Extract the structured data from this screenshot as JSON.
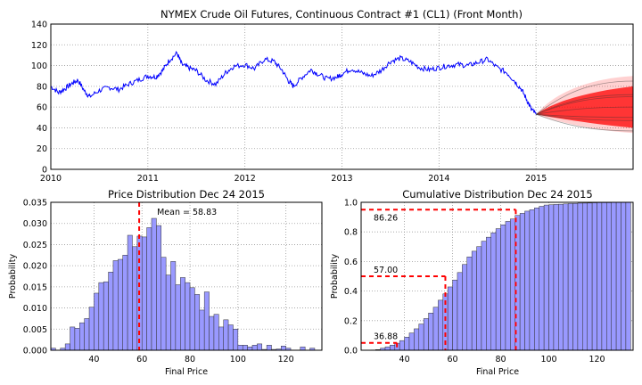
{
  "chart_data": [
    {
      "type": "line",
      "title": "NYMEX Crude Oil Futures, Continuous Contract #1 (CL1) (Front Month)",
      "xlabel": "",
      "ylabel": "",
      "xlim": [
        2010.0,
        2016.0
      ],
      "ylim": [
        0,
        140
      ],
      "x_ticks": [
        "2010",
        "2011",
        "2012",
        "2013",
        "2014",
        "2015"
      ],
      "y_ticks": [
        "0",
        "20",
        "40",
        "60",
        "80",
        "100",
        "120",
        "140"
      ],
      "grid": true,
      "series": [
        {
          "color": "#0000ff",
          "points": [
            [
              2010.0,
              80
            ],
            [
              2010.08,
              74
            ],
            [
              2010.15,
              78
            ],
            [
              2010.22,
              83
            ],
            [
              2010.28,
              86
            ],
            [
              2010.35,
              75
            ],
            [
              2010.4,
              70
            ],
            [
              2010.5,
              76
            ],
            [
              2010.6,
              79
            ],
            [
              2010.7,
              77
            ],
            [
              2010.8,
              82
            ],
            [
              2010.9,
              86
            ],
            [
              2011.0,
              90
            ],
            [
              2011.08,
              89
            ],
            [
              2011.15,
              95
            ],
            [
              2011.22,
              105
            ],
            [
              2011.3,
              112
            ],
            [
              2011.35,
              101
            ],
            [
              2011.42,
              98
            ],
            [
              2011.5,
              95
            ],
            [
              2011.6,
              86
            ],
            [
              2011.7,
              82
            ],
            [
              2011.8,
              93
            ],
            [
              2011.88,
              99
            ],
            [
              2012.0,
              101
            ],
            [
              2012.1,
              97
            ],
            [
              2012.2,
              106
            ],
            [
              2012.3,
              104
            ],
            [
              2012.38,
              96
            ],
            [
              2012.45,
              85
            ],
            [
              2012.5,
              80
            ],
            [
              2012.58,
              88
            ],
            [
              2012.68,
              96
            ],
            [
              2012.75,
              92
            ],
            [
              2012.85,
              87
            ],
            [
              2012.95,
              89
            ],
            [
              2013.0,
              92
            ],
            [
              2013.1,
              97
            ],
            [
              2013.2,
              93
            ],
            [
              2013.3,
              90
            ],
            [
              2013.4,
              95
            ],
            [
              2013.5,
              104
            ],
            [
              2013.6,
              107
            ],
            [
              2013.7,
              104
            ],
            [
              2013.8,
              98
            ],
            [
              2013.9,
              96
            ],
            [
              2014.0,
              98
            ],
            [
              2014.1,
              100
            ],
            [
              2014.2,
              101
            ],
            [
              2014.3,
              100
            ],
            [
              2014.4,
              103
            ],
            [
              2014.5,
              106
            ],
            [
              2014.6,
              98
            ],
            [
              2014.7,
              93
            ],
            [
              2014.78,
              85
            ],
            [
              2014.85,
              77
            ],
            [
              2014.9,
              68
            ],
            [
              2014.95,
              58
            ],
            [
              2015.0,
              53
            ]
          ]
        }
      ],
      "simulation": {
        "color": "#ff0000",
        "start": [
          2015.0,
          53
        ],
        "end_x": 2016.0,
        "mean_path_end": 60,
        "upper_band_end": 90,
        "lower_band_end": 35
      }
    },
    {
      "type": "bar",
      "title": "Price Distribution Dec 24 2015",
      "xlabel": "Final Price",
      "ylabel": "Probability",
      "xlim": [
        22,
        135
      ],
      "ylim": [
        0,
        0.035
      ],
      "x_ticks": [
        "40",
        "60",
        "80",
        "100",
        "120"
      ],
      "y_ticks": [
        "0.000",
        "0.005",
        "0.010",
        "0.015",
        "0.020",
        "0.025",
        "0.030",
        "0.035"
      ],
      "grid": true,
      "bar_color": "#9999ff",
      "bin_start": 22,
      "bin_width": 2,
      "values": [
        0.0005,
        0.0,
        0.0005,
        0.0015,
        0.0055,
        0.0052,
        0.0065,
        0.0075,
        0.0102,
        0.0135,
        0.016,
        0.0162,
        0.0185,
        0.0212,
        0.0215,
        0.0225,
        0.0272,
        0.0245,
        0.027,
        0.0268,
        0.029,
        0.0312,
        0.0295,
        0.022,
        0.0178,
        0.021,
        0.0155,
        0.0172,
        0.016,
        0.0148,
        0.0132,
        0.0095,
        0.0138,
        0.008,
        0.0085,
        0.0055,
        0.0072,
        0.006,
        0.005,
        0.0012,
        0.0012,
        0.0008,
        0.0012,
        0.0015,
        0.0002,
        0.0012,
        0.0002,
        0.0003,
        0.001,
        0.0005,
        0.0,
        0.0,
        0.0008,
        0.0,
        0.0005,
        0.0
      ],
      "mean_line": 58.83,
      "mean_label": "Mean = 58.83",
      "mean_line_color": "#ff0000"
    },
    {
      "type": "bar",
      "title": "Cumulative Distribution Dec 24 2015",
      "xlabel": "Final Price",
      "ylabel": "Probability",
      "xlim": [
        22,
        135
      ],
      "ylim": [
        0,
        1.0
      ],
      "x_ticks": [
        "40",
        "60",
        "80",
        "100",
        "120"
      ],
      "y_ticks": [
        "0.0",
        "0.2",
        "0.4",
        "0.6",
        "0.8",
        "1.0"
      ],
      "grid": true,
      "bar_color": "#9999ff",
      "bin_start": 22,
      "bin_width": 2,
      "cumulative": true,
      "markers": [
        {
          "x": 86.26,
          "y": 0.95,
          "label": "86.26"
        },
        {
          "x": 57.0,
          "y": 0.5,
          "label": "57.00"
        },
        {
          "x": 36.88,
          "y": 0.05,
          "label": "36.88"
        }
      ],
      "marker_color": "#ff0000"
    }
  ]
}
